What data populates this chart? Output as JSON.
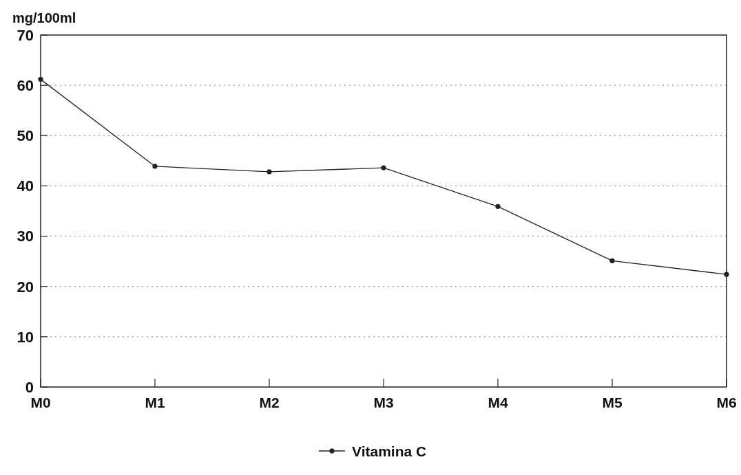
{
  "chart_data": {
    "type": "line",
    "ylabel": "mg/100ml",
    "categories": [
      "M0",
      "M1",
      "M2",
      "M3",
      "M4",
      "M5",
      "M6"
    ],
    "series": [
      {
        "name": "Vitamina C",
        "color": "#222222",
        "values": [
          61.2,
          43.9,
          42.8,
          43.6,
          35.9,
          25.1,
          22.4
        ]
      }
    ],
    "ylim": [
      0,
      70
    ],
    "yticks": [
      0,
      10,
      20,
      30,
      40,
      50,
      60,
      70
    ],
    "grid": "y",
    "legend": "bottom",
    "marker": "circle"
  }
}
